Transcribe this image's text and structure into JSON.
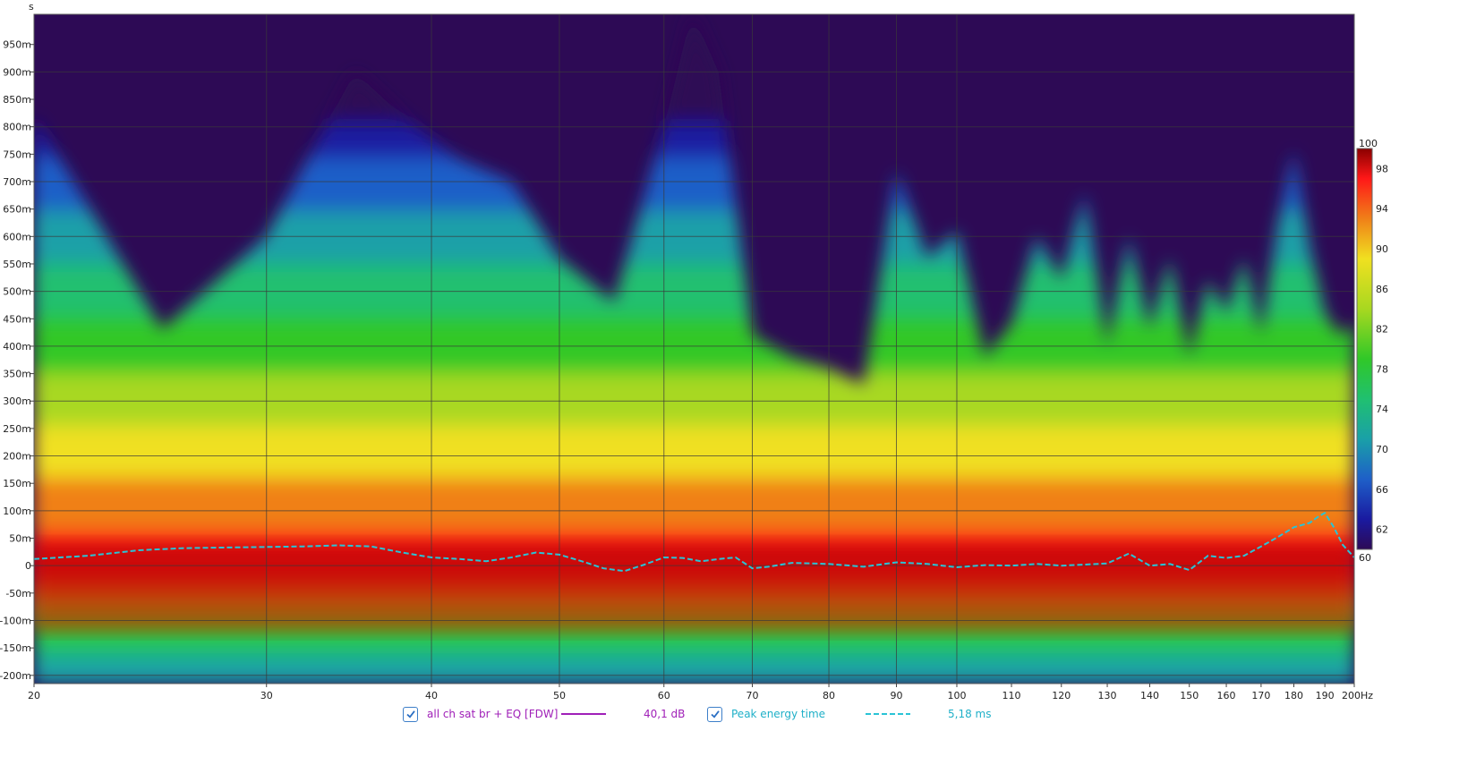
{
  "chart_data": {
    "type": "heatmap",
    "title": "",
    "y_unit_label": "s",
    "x_unit_label": "Hz",
    "x_scale": "log",
    "xlim": [
      20,
      200
    ],
    "ylim_ms": [
      -215,
      1005
    ],
    "x_ticks": [
      {
        "v": 20,
        "label": "20"
      },
      {
        "v": 30,
        "label": "30"
      },
      {
        "v": 40,
        "label": "40"
      },
      {
        "v": 50,
        "label": "50"
      },
      {
        "v": 60,
        "label": "60"
      },
      {
        "v": 70,
        "label": "70"
      },
      {
        "v": 80,
        "label": "80"
      },
      {
        "v": 90,
        "label": "90"
      },
      {
        "v": 100,
        "label": "100"
      },
      {
        "v": 110,
        "label": "110"
      },
      {
        "v": 120,
        "label": "120"
      },
      {
        "v": 130,
        "label": "130"
      },
      {
        "v": 140,
        "label": "140"
      },
      {
        "v": 150,
        "label": "150"
      },
      {
        "v": 160,
        "label": "160"
      },
      {
        "v": 170,
        "label": "170"
      },
      {
        "v": 180,
        "label": "180"
      },
      {
        "v": 190,
        "label": "190"
      },
      {
        "v": 200,
        "label": "200Hz"
      }
    ],
    "x_gridlines": [
      20,
      30,
      40,
      50,
      60,
      70,
      80,
      90,
      100,
      200
    ],
    "y_ticks": [
      {
        "v": 950,
        "label": "950m"
      },
      {
        "v": 900,
        "label": "900m"
      },
      {
        "v": 850,
        "label": "850m"
      },
      {
        "v": 800,
        "label": "800m"
      },
      {
        "v": 750,
        "label": "750m"
      },
      {
        "v": 700,
        "label": "700m"
      },
      {
        "v": 650,
        "label": "650m"
      },
      {
        "v": 600,
        "label": "600m"
      },
      {
        "v": 550,
        "label": "550m"
      },
      {
        "v": 500,
        "label": "500m"
      },
      {
        "v": 450,
        "label": "450m"
      },
      {
        "v": 400,
        "label": "400m"
      },
      {
        "v": 350,
        "label": "350m"
      },
      {
        "v": 300,
        "label": "300m"
      },
      {
        "v": 250,
        "label": "250m"
      },
      {
        "v": 200,
        "label": "200m"
      },
      {
        "v": 150,
        "label": "150m"
      },
      {
        "v": 100,
        "label": "100m"
      },
      {
        "v": 50,
        "label": "50m"
      },
      {
        "v": 0,
        "label": "0"
      },
      {
        "v": -50,
        "label": "-50m"
      },
      {
        "v": -100,
        "label": "-100m"
      },
      {
        "v": -150,
        "label": "-150m"
      },
      {
        "v": -200,
        "label": "-200m"
      }
    ],
    "y_gridlines": [
      900,
      800,
      700,
      600,
      500,
      400,
      300,
      200,
      100,
      0,
      -100,
      -200
    ],
    "color_scale": {
      "min": 60,
      "max": 100,
      "labels": [
        {
          "v": 100,
          "label": "100"
        },
        {
          "v": 98,
          "label": "98"
        },
        {
          "v": 94,
          "label": "94"
        },
        {
          "v": 90,
          "label": "90"
        },
        {
          "v": 86,
          "label": "86"
        },
        {
          "v": 82,
          "label": "82"
        },
        {
          "v": 78,
          "label": "78"
        },
        {
          "v": 74,
          "label": "74"
        },
        {
          "v": 70,
          "label": "70"
        },
        {
          "v": 66,
          "label": "66"
        },
        {
          "v": 62,
          "label": "62"
        },
        {
          "v": 60,
          "label": "60"
        }
      ],
      "stops": [
        {
          "v": 60,
          "color": "#2d0a55"
        },
        {
          "v": 63,
          "color": "#1a1aa0"
        },
        {
          "v": 67,
          "color": "#1e5fc8"
        },
        {
          "v": 71,
          "color": "#1aa0a8"
        },
        {
          "v": 75,
          "color": "#20c070"
        },
        {
          "v": 79,
          "color": "#30c828"
        },
        {
          "v": 84,
          "color": "#a8d820"
        },
        {
          "v": 89,
          "color": "#f0e020"
        },
        {
          "v": 93,
          "color": "#f08018"
        },
        {
          "v": 97,
          "color": "#ff1818"
        },
        {
          "v": 100,
          "color": "#8a0000"
        }
      ]
    },
    "background_color": "#2d0a55",
    "decay_envelope": {
      "freqs_hz": [
        20,
        25,
        30,
        35,
        38,
        42,
        46,
        50,
        55,
        60,
        63,
        66,
        70,
        75,
        80,
        85,
        90,
        95,
        100,
        105,
        110,
        115,
        120,
        125,
        130,
        135,
        140,
        145,
        150,
        155,
        160,
        165,
        170,
        175,
        180,
        185,
        190,
        195,
        200
      ],
      "decay_top_ms": [
        820,
        430,
        600,
        900,
        820,
        740,
        700,
        560,
        480,
        800,
        1010,
        900,
        420,
        380,
        360,
        330,
        720,
        560,
        610,
        380,
        440,
        600,
        520,
        680,
        400,
        600,
        430,
        560,
        380,
        520,
        460,
        560,
        420,
        620,
        760,
        580,
        460,
        420,
        440
      ]
    },
    "series": [
      {
        "name": "Peak energy time",
        "style": "dashed",
        "color": "#29c3d6",
        "x": [
          20,
          22,
          24,
          26,
          28,
          30,
          32,
          34,
          36,
          38,
          40,
          42,
          44,
          46,
          48,
          50,
          52,
          54,
          56,
          58,
          60,
          62,
          64,
          66,
          68,
          70,
          72,
          75,
          80,
          85,
          90,
          95,
          100,
          105,
          110,
          115,
          120,
          125,
          130,
          135,
          140,
          145,
          150,
          155,
          160,
          165,
          170,
          175,
          180,
          185,
          188,
          190,
          193,
          196,
          200
        ],
        "y_ms": [
          12,
          18,
          28,
          32,
          33,
          34,
          35,
          37,
          35,
          24,
          15,
          12,
          8,
          15,
          24,
          20,
          8,
          -5,
          -10,
          2,
          15,
          14,
          8,
          12,
          15,
          -5,
          -2,
          5,
          3,
          -2,
          6,
          3,
          -3,
          1,
          0,
          3,
          0,
          2,
          4,
          22,
          0,
          3,
          -8,
          18,
          14,
          18,
          35,
          52,
          70,
          78,
          90,
          96,
          70,
          38,
          15
        ]
      }
    ]
  },
  "legend": [
    {
      "checked": true,
      "label": "all ch sat br + EQ [FDW]",
      "line_style": "solid",
      "color": "#a020b8",
      "value": "40,1 dB"
    },
    {
      "checked": true,
      "label": "Peak energy time",
      "line_style": "dashed",
      "color": "#29c3d6",
      "value": "5,18 ms"
    }
  ]
}
